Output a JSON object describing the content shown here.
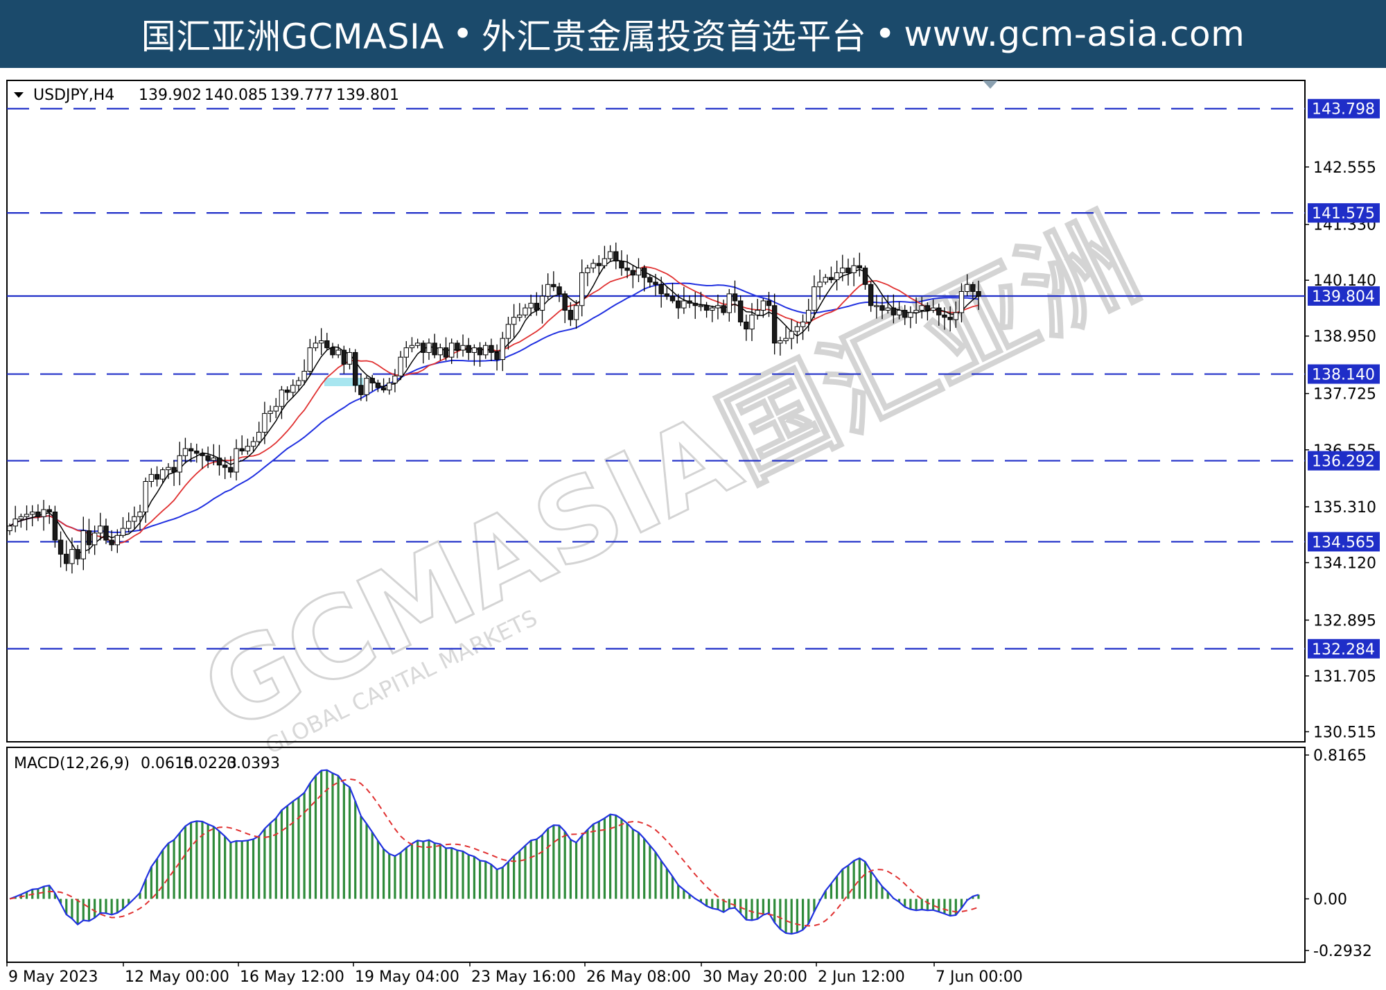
{
  "banner": {
    "brand": "国汇亚洲GCMASIA",
    "tagline": "外汇贵金属投资首选平台",
    "url": "www.gcm-asia.com",
    "separator": "•",
    "bg_color": "#1b4a6b"
  },
  "watermark": {
    "text": "GCMASIA国汇亚洲",
    "subtext": "GLOBAL CAPITAL MARKETS"
  },
  "chart_data": [
    {
      "type": "candlestick",
      "symbol_label": "USDJPY,H4",
      "ohlc_label": [
        "139.902",
        "140.085",
        "139.777",
        "139.801"
      ],
      "ylim": [
        130.3,
        144.4
      ],
      "y_ticks": [
        "142.555",
        "141.330",
        "140.140",
        "138.950",
        "137.725",
        "136.525",
        "135.310",
        "134.120",
        "132.895",
        "131.705",
        "130.515"
      ],
      "x_ticks": [
        "9 May 2023",
        "12 May 00:00",
        "16 May 12:00",
        "19 May 04:00",
        "23 May 16:00",
        "26 May 08:00",
        "30 May 20:00",
        "2 Jun 12:00",
        "7 Jun 00:00"
      ],
      "levels": [
        {
          "value": 143.798,
          "label": "143.798",
          "style": "dashed"
        },
        {
          "value": 141.575,
          "label": "141.575",
          "style": "dashed"
        },
        {
          "value": 139.804,
          "label": "139.804",
          "style": "solid"
        },
        {
          "value": 138.14,
          "label": "138.140",
          "style": "dashed"
        },
        {
          "value": 136.292,
          "label": "136.292",
          "style": "dashed"
        },
        {
          "value": 134.565,
          "label": "134.565",
          "style": "dashed"
        },
        {
          "value": 132.284,
          "label": "132.284",
          "style": "dashed"
        }
      ],
      "ma_colors": {
        "fast": "#000000",
        "mid": "#e03030",
        "slow": "#2030e0"
      },
      "candle_colors": {
        "up": "#2e8b3a",
        "down": "#8b1a2a"
      },
      "closes": [
        134.9,
        135.05,
        135.1,
        135.15,
        135.2,
        135.1,
        135.25,
        135.2,
        134.6,
        134.3,
        134.1,
        134.4,
        134.2,
        134.8,
        134.5,
        134.75,
        134.9,
        134.6,
        134.5,
        134.7,
        134.85,
        135.0,
        135.1,
        135.2,
        135.85,
        136.0,
        135.9,
        136.1,
        136.15,
        136.05,
        136.4,
        136.55,
        136.5,
        136.45,
        136.4,
        136.3,
        136.35,
        136.2,
        136.15,
        136.05,
        136.55,
        136.5,
        136.6,
        136.7,
        136.9,
        137.3,
        137.35,
        137.45,
        137.8,
        137.75,
        137.9,
        138.0,
        138.2,
        138.7,
        138.8,
        138.85,
        138.7,
        138.55,
        138.65,
        138.35,
        138.6,
        137.9,
        137.7,
        138.05,
        137.95,
        137.85,
        137.8,
        137.95,
        138.1,
        138.5,
        138.7,
        138.75,
        138.8,
        138.6,
        138.8,
        138.55,
        138.7,
        138.5,
        138.8,
        138.65,
        138.75,
        138.6,
        138.7,
        138.55,
        138.75,
        138.6,
        138.45,
        138.9,
        139.2,
        139.35,
        139.4,
        139.55,
        139.65,
        139.5,
        139.8,
        140.05,
        140.0,
        139.85,
        139.5,
        139.3,
        139.6,
        140.3,
        140.4,
        140.5,
        140.45,
        140.6,
        140.75,
        140.55,
        140.4,
        140.35,
        140.25,
        140.4,
        140.2,
        140.1,
        140.05,
        139.85,
        139.8,
        139.7,
        139.55,
        139.7,
        139.65,
        139.6,
        139.6,
        139.5,
        139.55,
        139.6,
        139.45,
        139.85,
        139.7,
        139.25,
        139.1,
        139.4,
        139.5,
        139.7,
        139.6,
        138.8,
        138.85,
        138.9,
        139.05,
        139.15,
        139.25,
        139.5,
        140.0,
        140.1,
        140.2,
        140.15,
        140.3,
        140.4,
        140.3,
        140.45,
        140.4,
        140.05,
        139.6,
        139.6,
        139.5,
        139.55,
        139.4,
        139.5,
        139.35,
        139.45,
        139.5,
        139.6,
        139.5,
        139.55,
        139.4,
        139.35,
        139.3,
        139.45,
        139.9,
        140.05,
        139.9,
        139.8
      ]
    },
    {
      "type": "line",
      "title": "MACD(12,26,9)",
      "values_label": [
        "0.0615",
        "0.0223",
        "0.0393"
      ],
      "ylim": [
        -0.36,
        0.86
      ],
      "y_ticks": [
        "0.8165",
        "0.00",
        "-0.2932"
      ],
      "colors": {
        "macd": "#2030e0",
        "signal": "#e03030",
        "histogram": "#2e8b3a"
      }
    }
  ]
}
